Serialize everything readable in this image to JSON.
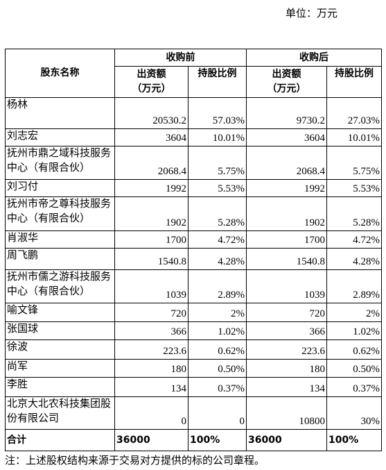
{
  "unit": "单位：万元",
  "table": {
    "header": {
      "name": "股东名称",
      "groups": [
        "收购前",
        "收购后"
      ],
      "columns": [
        "出资额\n（万元）",
        "持股比例",
        "出资额\n（万元）",
        "持股比例"
      ]
    },
    "rows": [
      [
        "杨林",
        "20530.2",
        "57.03%",
        "9730.2",
        "27.03%"
      ],
      [
        "刘志宏",
        "3604",
        "10.01%",
        "3604",
        "10.01%"
      ],
      [
        "抚州市鼎之域科技服务中心（有限合伙）",
        "2068.4",
        "5.75%",
        "2068.4",
        "5.75%"
      ],
      [
        "刘习付",
        "1992",
        "5.53%",
        "1992",
        "5.53%"
      ],
      [
        "抚州市帝之尊科技服务中心（有限合伙）",
        "1902",
        "5.28%",
        "1902",
        "5.28%"
      ],
      [
        "肖淑华",
        "1700",
        "4.72%",
        "1700",
        "4.72%"
      ],
      [
        "周飞鹏",
        "1540.8",
        "4.28%",
        "1540.8",
        "4.28%"
      ],
      [
        "抚州市儒之游科技服务中心（有限合伙）",
        "1039",
        "2.89%",
        "1039",
        "2.89%"
      ],
      [
        "喻文锋",
        "720",
        "2%",
        "720",
        "2%"
      ],
      [
        "张国球",
        "366",
        "1.02%",
        "366",
        "1.02%"
      ],
      [
        "徐波",
        "223.6",
        "0.62%",
        "223.6",
        "0.62%"
      ],
      [
        "尚军",
        "180",
        "0.50%",
        "180",
        "0.50%"
      ],
      [
        "李胜",
        "134",
        "0.37%",
        "134",
        "0.37%"
      ],
      [
        "北京大北农科技集团股份有限公司",
        "0",
        "0",
        "10800",
        "30%"
      ]
    ],
    "total": [
      "合计",
      "36000",
      "100%",
      "36000",
      "100%"
    ]
  },
  "note": "注：上述股权结构来源于交易对方提供的标的公司章程。"
}
